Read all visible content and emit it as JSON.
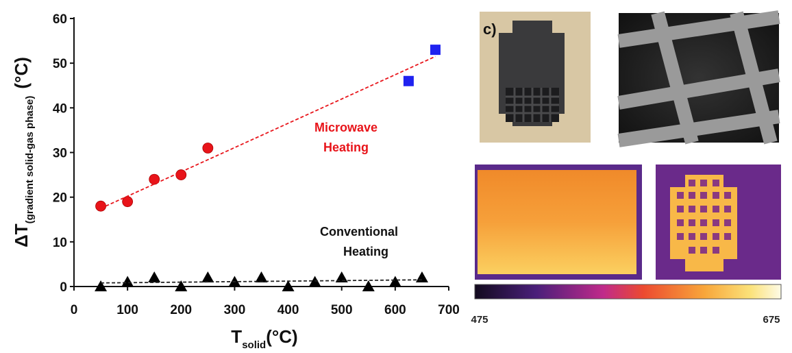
{
  "chart_data": {
    "type": "scatter",
    "xlim": [
      0,
      700
    ],
    "xticks": [
      0,
      100,
      200,
      300,
      400,
      500,
      600,
      700
    ],
    "ylim": [
      0,
      60
    ],
    "yticks": [
      0,
      10,
      20,
      30,
      40,
      50,
      60
    ],
    "x_label": {
      "main": "T",
      "sub": "solid",
      "unit": "(°C)"
    },
    "y_label": {
      "main": "ΔT",
      "sub": "(gradient solid-gas phase)",
      "unit": "(°C)"
    },
    "annotations": [
      {
        "lines": [
          "Microwave",
          "Heating"
        ],
        "color": "#e8141a"
      },
      {
        "lines": [
          "Conventional",
          "Heating"
        ],
        "color": "#111111"
      }
    ],
    "series": [
      {
        "marker": "circle",
        "color": "#e8141a",
        "x": [
          50,
          100,
          150,
          200,
          250
        ],
        "values": [
          18,
          19,
          24,
          25,
          31
        ]
      },
      {
        "marker": "square",
        "color": "#1f22f0",
        "x": [
          625,
          675
        ],
        "values": [
          46,
          53
        ]
      },
      {
        "marker": "triangle",
        "color": "#000000",
        "x": [
          50,
          100,
          150,
          200,
          250,
          300,
          350,
          400,
          450,
          500,
          550,
          600,
          650
        ],
        "values": [
          0,
          1,
          2,
          0,
          2,
          1,
          2,
          0,
          1,
          2,
          0,
          1,
          2
        ]
      },
      {
        "marker": "dashed-line",
        "color": "#e8141a",
        "x": [
          50,
          675
        ],
        "values": [
          17.5,
          51.5
        ]
      },
      {
        "marker": "dashed-line",
        "color": "#222222",
        "x": [
          50,
          650
        ],
        "values": [
          0.8,
          1.5
        ]
      }
    ]
  },
  "images": {
    "panel_label": "c)",
    "colorbar": {
      "lim": [
        475,
        675
      ],
      "ticks": [
        475,
        675
      ]
    }
  }
}
